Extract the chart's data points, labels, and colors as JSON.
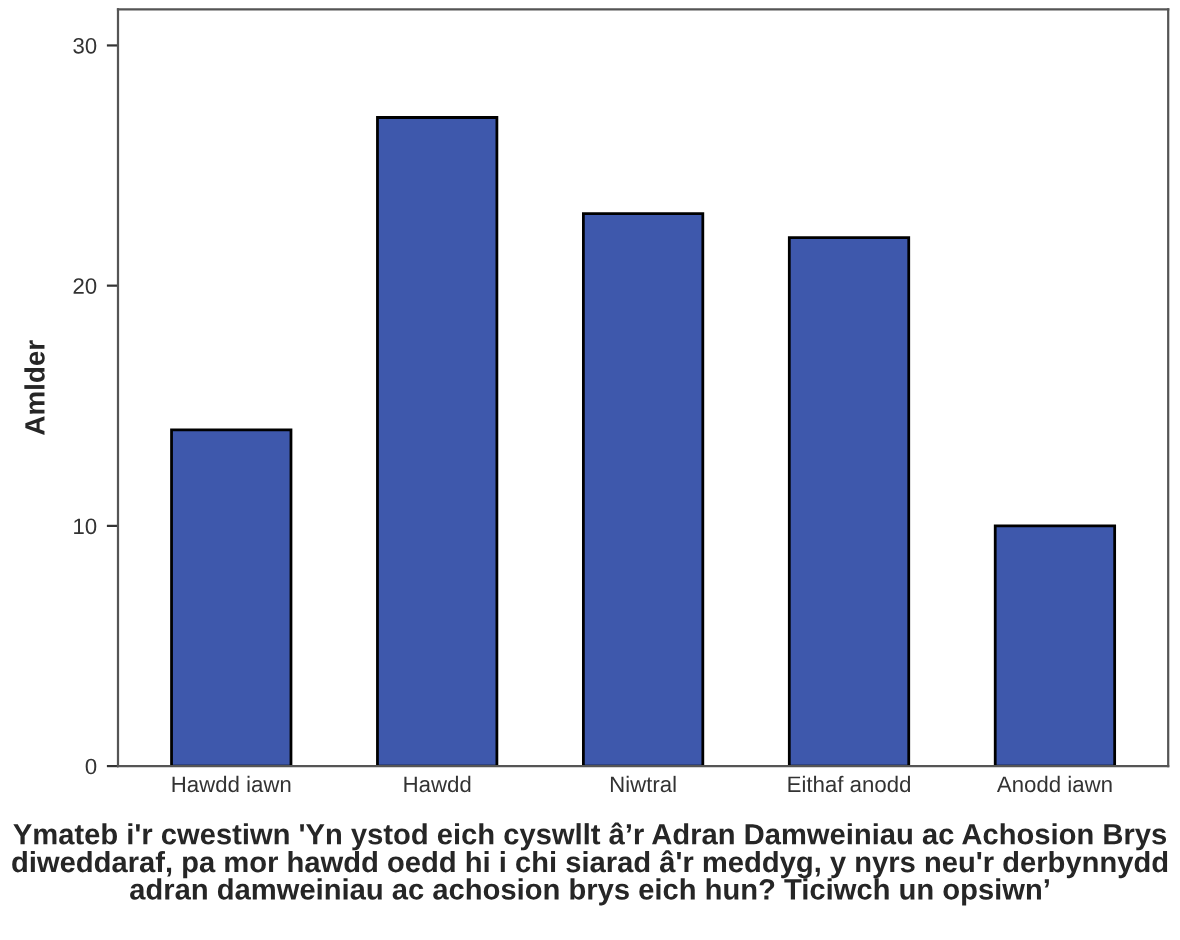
{
  "chart_data": {
    "type": "bar",
    "categories": [
      "Hawdd iawn",
      "Hawdd",
      "Niwtral",
      "Eithaf anodd",
      "Anodd iawn"
    ],
    "values": [
      14,
      27,
      23,
      22,
      10
    ],
    "color": "#3e58ac",
    "ylim": [
      0,
      31.5
    ],
    "yticks": [
      0,
      10,
      20,
      30
    ],
    "ylabel": "Amlder",
    "xlabel": "Ymateb i'r cwestiwn 'Yn ystod eich cyswllt â’r Adran Damweiniau ac Achosion Brys diweddaraf, pa mor hawdd oedd hi i chi siarad â'r meddyg, y nyrs neu'r derbynnydd adran damweiniau ac achosion brys eich hun? Ticiwch un opsiwn’",
    "grid": false
  }
}
